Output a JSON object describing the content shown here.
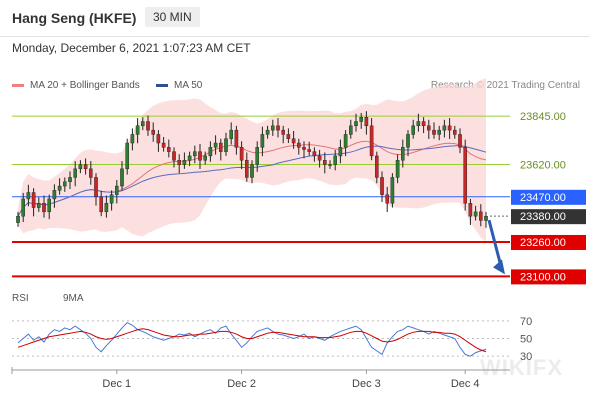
{
  "header": {
    "instrument": "Hang Seng (HKFE)",
    "timeframe": "30 MIN"
  },
  "datetime": "Monday, December 6, 2021 1:07:23 AM CET",
  "legend": {
    "ma_bb": {
      "label": "MA 20 + Bollinger Bands",
      "color": "#f08080"
    },
    "ma50": {
      "label": "MA 50",
      "color": "#2f4f8f"
    }
  },
  "credit": "Research © 2021 Trading Central",
  "rsi_legend": {
    "rsi": {
      "label": "RSI",
      "color": "#4a78d6"
    },
    "ma9": {
      "label": "9MA",
      "color": "#cc0000"
    }
  },
  "watermark": "WIKIFX",
  "chart_data": {
    "type": "candlestick",
    "x_ticks": [
      "Dec 1",
      "Dec 2",
      "Dec 3",
      "Dec 4"
    ],
    "ylim": [
      23060,
      23920
    ],
    "levels": [
      {
        "value": 23845,
        "label": "23845.00",
        "style": "resistance",
        "color": "#9acd32"
      },
      {
        "value": 23620,
        "label": "23620.00",
        "style": "resistance",
        "color": "#9acd32"
      },
      {
        "value": 23470,
        "label": "23470.00",
        "style": "pivot",
        "color": "#2962ff"
      },
      {
        "value": 23380,
        "label": "23380.00",
        "style": "last_price",
        "color": "#333333"
      },
      {
        "value": 23260,
        "label": "23260.00",
        "style": "support",
        "color": "#e00000"
      },
      {
        "value": 23100,
        "label": "23100.00",
        "style": "support",
        "color": "#e00000"
      }
    ],
    "close": [
      23380,
      23460,
      23490,
      23420,
      23440,
      23400,
      23460,
      23500,
      23520,
      23540,
      23560,
      23600,
      23620,
      23600,
      23560,
      23470,
      23400,
      23440,
      23480,
      23520,
      23600,
      23720,
      23760,
      23800,
      23820,
      23780,
      23760,
      23720,
      23700,
      23680,
      23640,
      23620,
      23640,
      23660,
      23680,
      23640,
      23660,
      23700,
      23720,
      23680,
      23740,
      23780,
      23700,
      23640,
      23560,
      23620,
      23700,
      23760,
      23780,
      23800,
      23780,
      23760,
      23740,
      23720,
      23700,
      23690,
      23680,
      23660,
      23640,
      23620,
      23620,
      23660,
      23700,
      23760,
      23800,
      23820,
      23840,
      23800,
      23660,
      23560,
      23480,
      23440,
      23560,
      23640,
      23700,
      23760,
      23800,
      23820,
      23800,
      23780,
      23760,
      23780,
      23800,
      23780,
      23760,
      23700,
      23440,
      23380,
      23400,
      23360,
      23380
    ],
    "rsi": {
      "ylim": [
        20,
        80
      ],
      "ticks": [
        70,
        50,
        30
      ],
      "rsi": [
        45,
        50,
        55,
        48,
        52,
        46,
        55,
        60,
        58,
        62,
        60,
        64,
        60,
        56,
        50,
        40,
        35,
        42,
        48,
        55,
        62,
        68,
        65,
        60,
        58,
        55,
        52,
        50,
        48,
        50,
        52,
        55,
        54,
        56,
        52,
        55,
        58,
        60,
        56,
        62,
        64,
        55,
        48,
        40,
        45,
        52,
        58,
        60,
        62,
        58,
        55,
        54,
        52,
        50,
        52,
        55,
        50,
        52,
        50,
        48,
        52,
        55,
        58,
        60,
        62,
        64,
        60,
        50,
        40,
        36,
        32,
        45,
        52,
        58,
        60,
        64,
        62,
        60,
        58,
        55,
        58,
        56,
        54,
        52,
        50,
        40,
        32,
        30,
        34,
        36,
        38
      ],
      "ma9": [
        40,
        42,
        44,
        46,
        48,
        50,
        52,
        53,
        54,
        55,
        56,
        57,
        58,
        57,
        55,
        52,
        50,
        49,
        50,
        52,
        54,
        56,
        58,
        60,
        61,
        60,
        58,
        56,
        54,
        53,
        52,
        52,
        53,
        54,
        54,
        55,
        55,
        56,
        57,
        58,
        58,
        57,
        55,
        52,
        50,
        50,
        52,
        54,
        56,
        57,
        57,
        56,
        55,
        54,
        53,
        52,
        52,
        52,
        51,
        51,
        51,
        52,
        53,
        55,
        57,
        58,
        58,
        56,
        53,
        50,
        47,
        46,
        47,
        49,
        52,
        55,
        57,
        58,
        58,
        58,
        57,
        57,
        56,
        56,
        55,
        52,
        48,
        44,
        40,
        37,
        35
      ]
    }
  }
}
